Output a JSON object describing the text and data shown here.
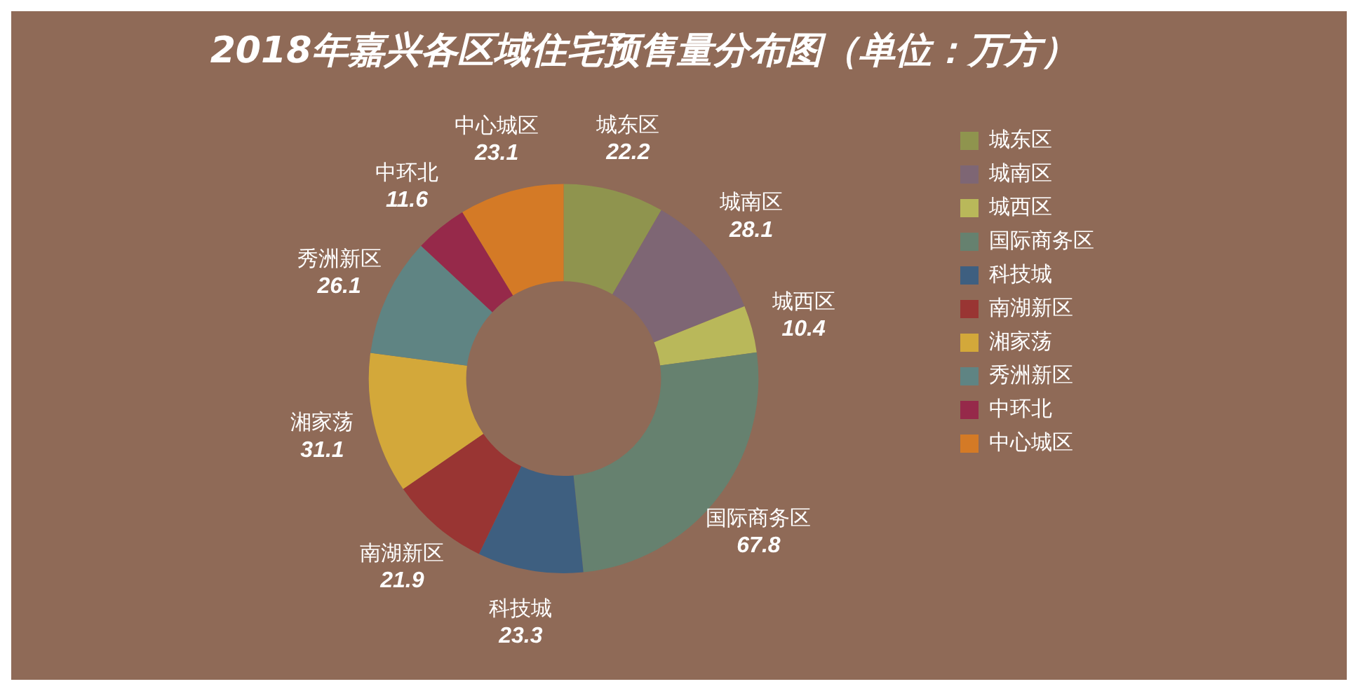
{
  "chart_data": {
    "type": "donut",
    "title": "2018年嘉兴各区域住宅预售量分布图（单位：万方）",
    "categories": [
      "城东区",
      "城南区",
      "城西区",
      "国际商务区",
      "科技城",
      "南湖新区",
      "湘家荡",
      "秀洲新区",
      "中环北",
      "中心城区"
    ],
    "values": [
      22.2,
      28.1,
      10.4,
      67.8,
      23.3,
      21.9,
      31.1,
      26.1,
      11.6,
      23.1
    ],
    "colors": [
      "#8f944e",
      "#7e6674",
      "#b9b85a",
      "#66816f",
      "#3e5f80",
      "#993533",
      "#d3a83a",
      "#5f8483",
      "#96294a",
      "#d47a26"
    ],
    "data_labels": true,
    "legend": "right"
  }
}
